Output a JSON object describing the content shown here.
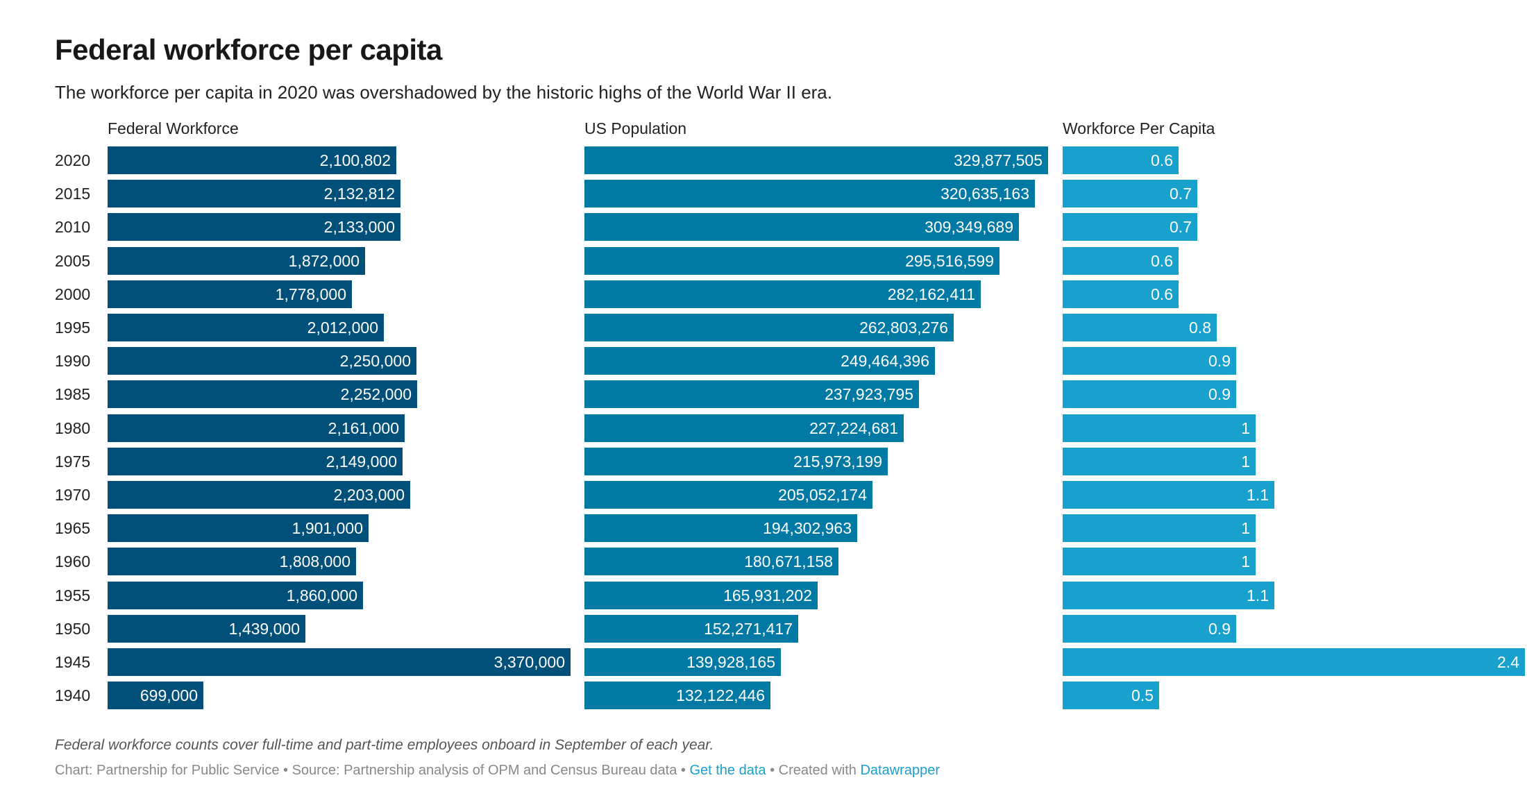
{
  "colors": {
    "workforce": "#00507a",
    "population": "#0079a4",
    "per_capita": "#18a1cd"
  },
  "chart_data": {
    "type": "bar",
    "title": "Federal workforce per capita",
    "subtitle": "The workforce per capita in 2020 was overshadowed by the historic highs of the World War II era.",
    "categories": [
      "2020",
      "2015",
      "2010",
      "2005",
      "2000",
      "1995",
      "1990",
      "1985",
      "1980",
      "1975",
      "1970",
      "1965",
      "1960",
      "1955",
      "1950",
      "1945",
      "1940"
    ],
    "series": [
      {
        "name": "Federal Workforce",
        "max": 3370000,
        "values": [
          2100802,
          2132812,
          2133000,
          1872000,
          1778000,
          2012000,
          2250000,
          2252000,
          2161000,
          2149000,
          2203000,
          1901000,
          1808000,
          1860000,
          1439000,
          3370000,
          699000
        ],
        "labels": [
          "2,100,802",
          "2,132,812",
          "2,133,000",
          "1,872,000",
          "1,778,000",
          "2,012,000",
          "2,250,000",
          "2,252,000",
          "2,161,000",
          "2,149,000",
          "2,203,000",
          "1,901,000",
          "1,808,000",
          "1,860,000",
          "1,439,000",
          "3,370,000",
          "699,000"
        ]
      },
      {
        "name": "US Population",
        "max": 329877505,
        "values": [
          329877505,
          320635163,
          309349689,
          295516599,
          282162411,
          262803276,
          249464396,
          237923795,
          227224681,
          215973199,
          205052174,
          194302963,
          180671158,
          165931202,
          152271417,
          139928165,
          132122446
        ],
        "labels": [
          "329,877,505",
          "320,635,163",
          "309,349,689",
          "295,516,599",
          "282,162,411",
          "262,803,276",
          "249,464,396",
          "237,923,795",
          "227,224,681",
          "215,973,199",
          "205,052,174",
          "194,302,963",
          "180,671,158",
          "165,931,202",
          "152,271,417",
          "139,928,165",
          "132,122,446"
        ]
      },
      {
        "name": "Workforce Per Capita",
        "max": 2.4,
        "values": [
          0.6,
          0.7,
          0.7,
          0.6,
          0.6,
          0.8,
          0.9,
          0.9,
          1,
          1,
          1.1,
          1,
          1,
          1.1,
          0.9,
          2.4,
          0.5
        ],
        "labels": [
          "0.6",
          "0.7",
          "0.7",
          "0.6",
          "0.6",
          "0.8",
          "0.9",
          "0.9",
          "1",
          "1",
          "1.1",
          "1",
          "1",
          "1.1",
          "0.9",
          "2.4",
          "0.5"
        ]
      }
    ]
  },
  "footer": {
    "note": "Federal workforce counts cover full-time and part-time employees onboard in September of each year.",
    "credits_prefix": "Chart: Partnership for Public Service • Source: Partnership analysis of OPM and Census Bureau data • ",
    "get_data": "Get the data",
    "created_with": " • Created with ",
    "datawrapper": "Datawrapper"
  }
}
